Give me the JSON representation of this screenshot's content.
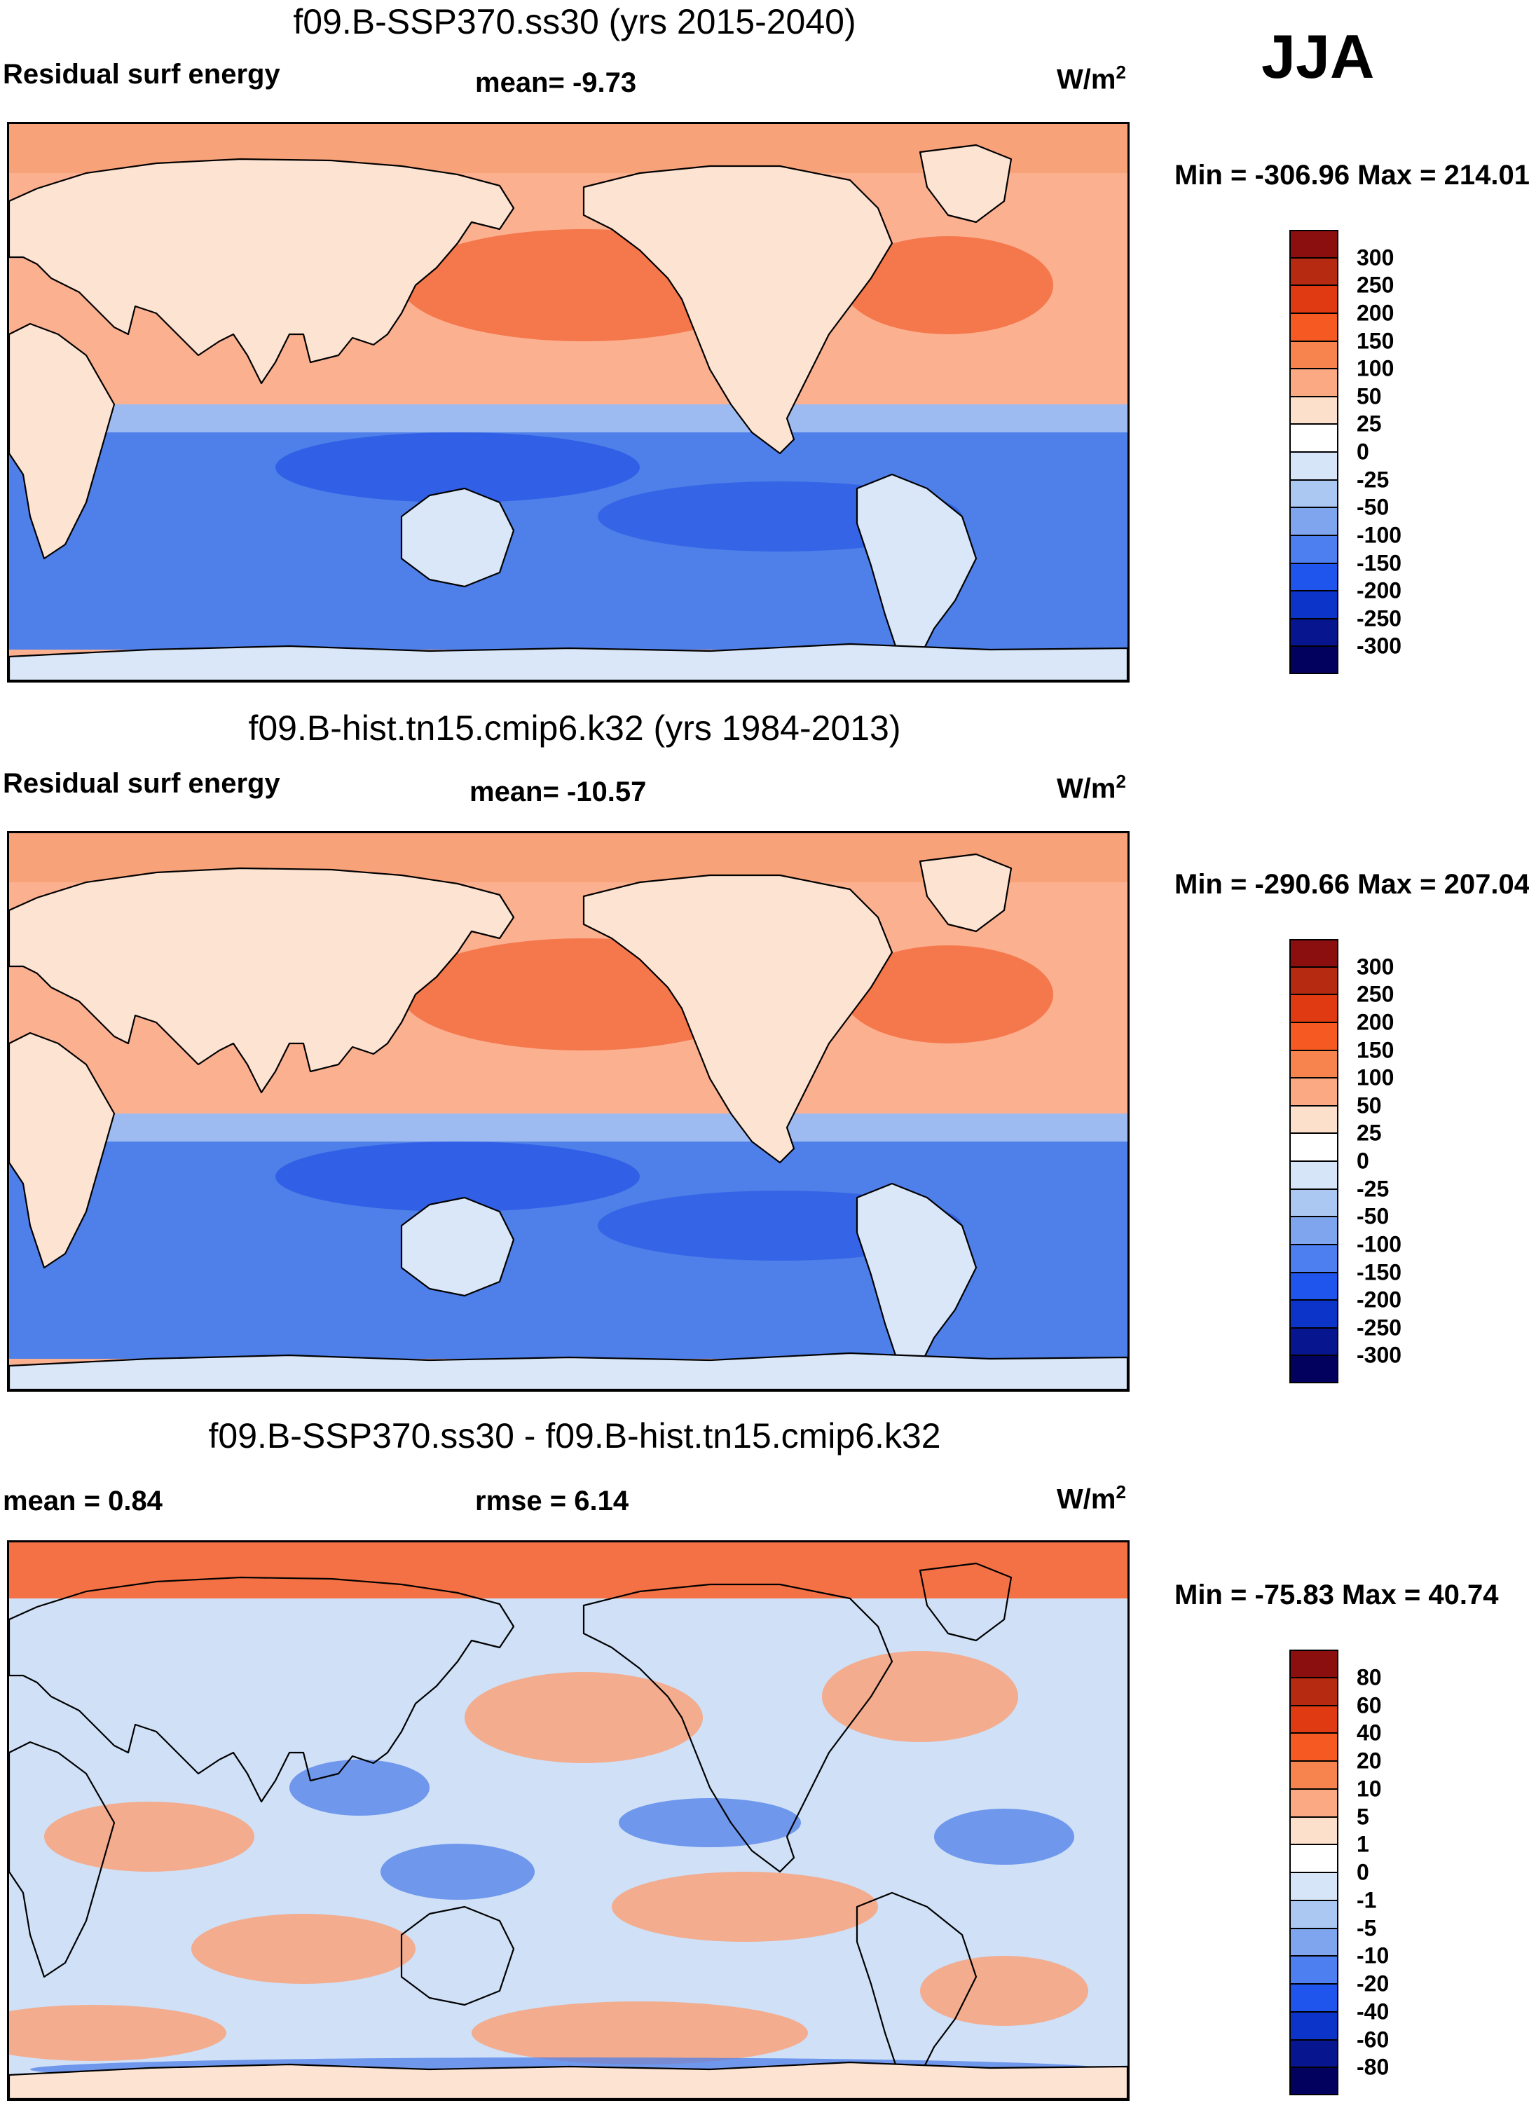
{
  "season": "JJA",
  "units_base": "W/m",
  "units_exp": "2",
  "panels": [
    {
      "id": "p1",
      "title": "f09.B-SSP370.ss30 (yrs 2015-2040)",
      "left_label": "Residual surf energy",
      "center_label": "mean=  -9.73",
      "minmax": "Min = -306.96 Max = 214.01",
      "legend_labels": [
        "300",
        "250",
        "200",
        "150",
        "100",
        "50",
        "25",
        "0",
        "-25",
        "-50",
        "-100",
        "-150",
        "-200",
        "-250",
        "-300"
      ]
    },
    {
      "id": "p2",
      "title": "f09.B-hist.tn15.cmip6.k32 (yrs 1984-2013)",
      "left_label": "Residual surf energy",
      "center_label": "mean= -10.57",
      "minmax": "Min = -290.66 Max = 207.04",
      "legend_labels": [
        "300",
        "250",
        "200",
        "150",
        "100",
        "50",
        "25",
        "0",
        "-25",
        "-50",
        "-100",
        "-150",
        "-200",
        "-250",
        "-300"
      ]
    },
    {
      "id": "p3",
      "title": "f09.B-SSP370.ss30 - f09.B-hist.tn15.cmip6.k32",
      "left_label": "mean =   0.84",
      "center_label": "rmse =   6.14",
      "minmax": "Min = -75.83 Max =  40.74",
      "legend_labels": [
        "80",
        "60",
        "40",
        "20",
        "10",
        "5",
        "1",
        "0",
        "-1",
        "-5",
        "-10",
        "-20",
        "-40",
        "-60",
        "-80"
      ]
    }
  ],
  "colors": {
    "scale": [
      "#8b0f0f",
      "#b72a12",
      "#df3a12",
      "#f65a22",
      "#f7834f",
      "#fba983",
      "#fde0cc",
      "#ffffff",
      "#d6e6f8",
      "#aac8f2",
      "#7ea5ee",
      "#4d7ff0",
      "#1f55ec",
      "#0d34c8",
      "#07168f",
      "#02025e"
    ],
    "ocean_pos": "#fbb090",
    "ocean_strong": "#f47145",
    "ocean_neg": "#4f7fe8",
    "ocean_neg_strong": "#2b5ae6",
    "land": "#fde3d2",
    "land_cold": "#d9e7f8",
    "diff_base": "#cfe0f7",
    "diff_pos": "#f9a27a"
  }
}
